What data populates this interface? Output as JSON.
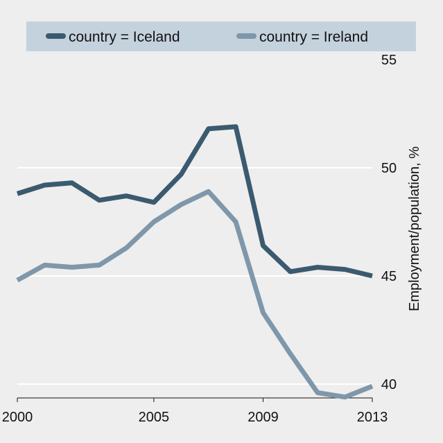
{
  "chart_data": {
    "type": "line",
    "title": "",
    "xlabel": "",
    "ylabel": "Employment/population, %",
    "x": [
      2000,
      2001,
      2002,
      2003,
      2004,
      2005,
      2006,
      2007,
      2008,
      2009,
      2010,
      2011,
      2012,
      2013
    ],
    "xlim": [
      2000,
      2013
    ],
    "ylim": [
      40,
      55
    ],
    "x_ticks": [
      2000,
      2005,
      2009,
      2013
    ],
    "y_ticks": [
      40,
      45,
      50,
      55
    ],
    "y_axis_side": "right",
    "grid": "horizontal",
    "legend_position": "top",
    "series": [
      {
        "name": "country = Iceland",
        "color": "#3b5a6f",
        "values": [
          48.8,
          49.2,
          49.3,
          48.5,
          48.7,
          48.4,
          49.7,
          51.8,
          51.9,
          46.4,
          45.2,
          45.4,
          45.3,
          45.0
        ]
      },
      {
        "name": "country = Ireland",
        "color": "#7f97aa",
        "values": [
          44.8,
          45.5,
          45.4,
          45.5,
          46.3,
          47.5,
          48.3,
          48.9,
          47.5,
          43.3,
          41.4,
          39.6,
          39.4,
          39.9
        ]
      }
    ]
  },
  "colors": {
    "background": "#eeeeee",
    "legend_background": "#c4d2de",
    "gridline": "#ffffff"
  }
}
